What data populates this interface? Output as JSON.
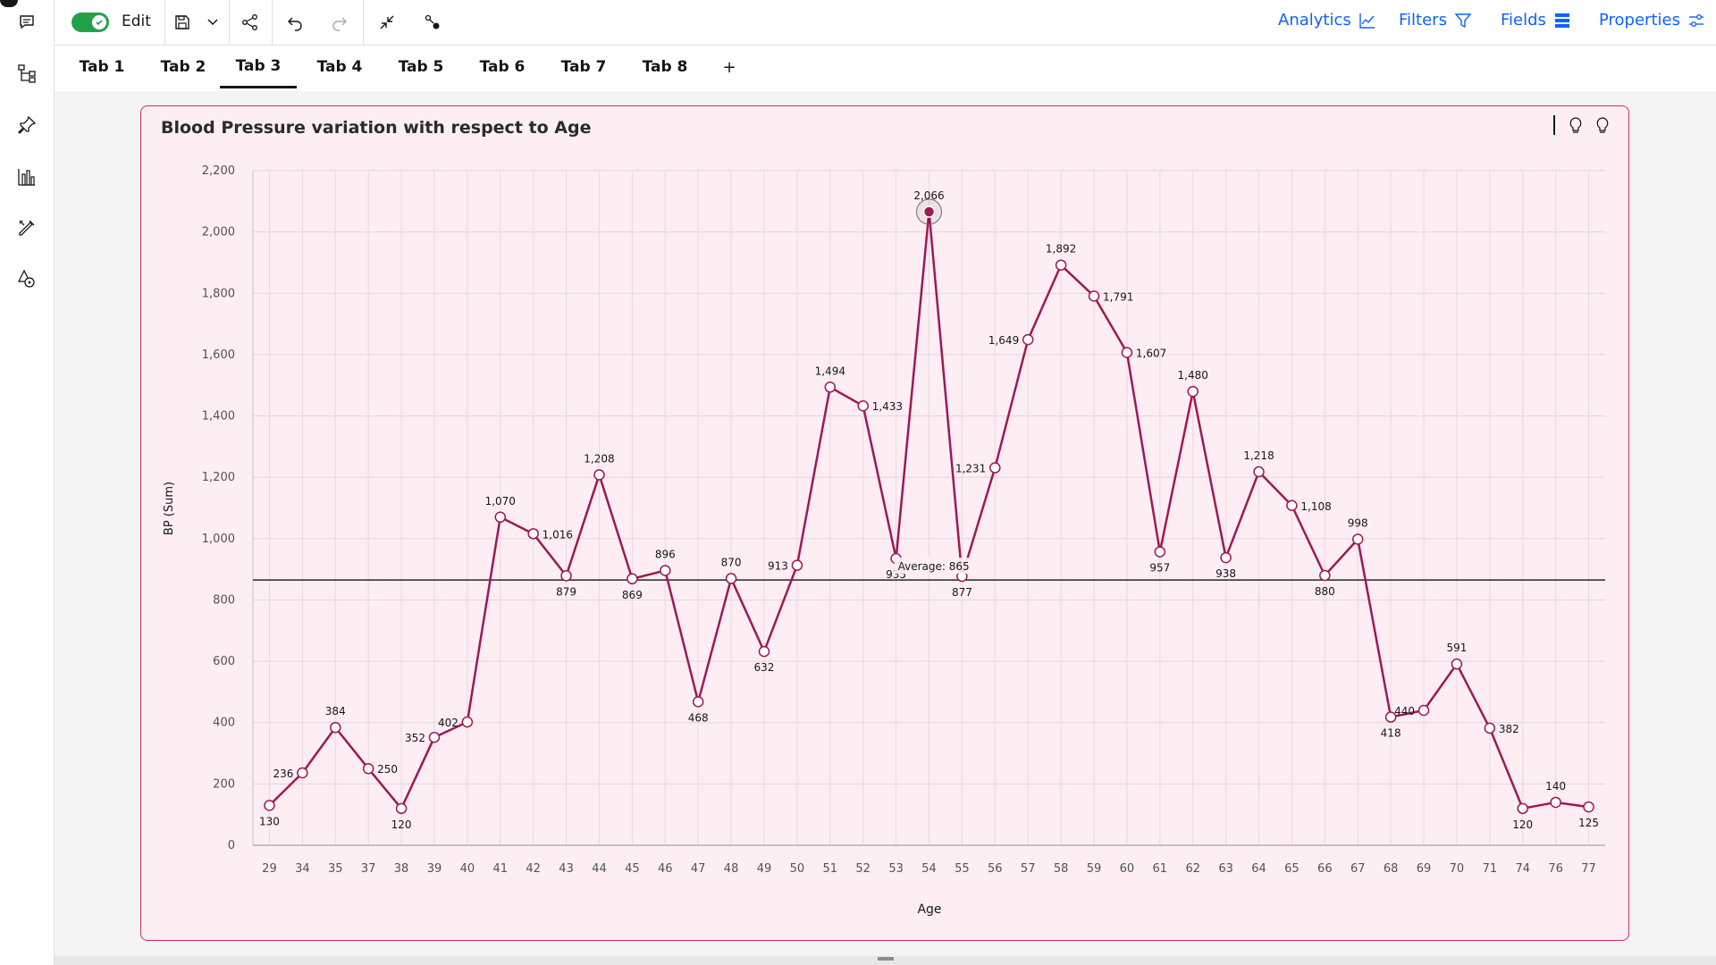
{
  "toolbar": {
    "edit_label": "Edit",
    "analytics_label": "Analytics",
    "filters_label": "Filters",
    "fields_label": "Fields",
    "properties_label": "Properties",
    "accent": "#0f62fe",
    "toggle_color": "#24a148"
  },
  "tabs": [
    {
      "label": "Tab 1"
    },
    {
      "label": "Tab 2"
    },
    {
      "label": "Tab 3"
    },
    {
      "label": "Tab 4"
    },
    {
      "label": "Tab 5"
    },
    {
      "label": "Tab 6"
    },
    {
      "label": "Tab 7"
    },
    {
      "label": "Tab 8"
    }
  ],
  "active_tab": "Tab 3",
  "add_tab_label": "+",
  "widget": {
    "title": "Blood Pressure variation with respect to Age",
    "border_color": "#d12771",
    "background": "#fdeef4"
  },
  "chart_data": {
    "type": "line",
    "title": "Blood Pressure variation with respect to Age",
    "xlabel": "Age",
    "ylabel": "BP (Sum)",
    "ylim": [
      0,
      2200
    ],
    "yticks": [
      0,
      200,
      400,
      600,
      800,
      1000,
      1200,
      1400,
      1600,
      1800,
      2000,
      2200
    ],
    "ytick_labels": [
      "0",
      "200",
      "400",
      "600",
      "800",
      "1,000",
      "1,200",
      "1,400",
      "1,600",
      "1,800",
      "2,000",
      "2,200"
    ],
    "grid": true,
    "line_color": "#9f1853",
    "average": {
      "value": 865,
      "label": "Average: 865"
    },
    "highlighted_category": "54",
    "categories": [
      "29",
      "34",
      "35",
      "37",
      "38",
      "39",
      "40",
      "41",
      "42",
      "43",
      "44",
      "45",
      "46",
      "47",
      "48",
      "49",
      "50",
      "51",
      "52",
      "53",
      "54",
      "55",
      "56",
      "57",
      "58",
      "59",
      "60",
      "61",
      "62",
      "63",
      "64",
      "65",
      "66",
      "67",
      "68",
      "69",
      "70",
      "71",
      "74",
      "76",
      "77"
    ],
    "values": [
      130,
      236,
      384,
      250,
      120,
      352,
      402,
      1070,
      1016,
      879,
      1208,
      869,
      896,
      468,
      870,
      632,
      913,
      1494,
      1433,
      935,
      2066,
      877,
      1231,
      1649,
      1892,
      1791,
      1607,
      957,
      1480,
      938,
      1218,
      1108,
      880,
      998,
      418,
      440,
      591,
      382,
      120,
      140,
      125
    ],
    "labels": [
      "130",
      "236",
      "384",
      "250",
      "120",
      "352",
      "402",
      "1,070",
      "1,016",
      "879",
      "1,208",
      "869",
      "896",
      "468",
      "870",
      "632",
      "913",
      "1,494",
      "1,433",
      "935",
      "2,066",
      "877",
      "1,231",
      "1,649",
      "1,892",
      "1,791",
      "1,607",
      "957",
      "1,480",
      "938",
      "1,218",
      "1,108",
      "880",
      "998",
      "418",
      "440",
      "591",
      "382",
      "120",
      "140",
      "125"
    ]
  }
}
